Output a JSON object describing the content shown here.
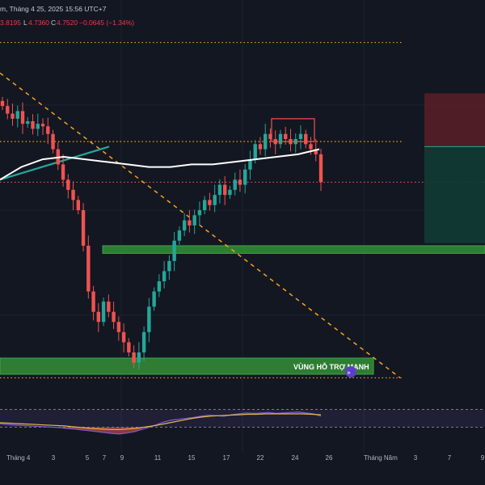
{
  "header": {
    "date_prefix": "m, Tháng 4 25, 2025 15:56 UTC+7",
    "ohlc": [
      "3.8195",
      "L4.7360",
      "C4.7520",
      "−0.0645 (−1.34%)"
    ]
  },
  "zone": {
    "label": "VÙNG HỖ TRỢ MẠNH"
  },
  "colors": {
    "background": "#131722",
    "bull": "#26a69a",
    "bear": "#ef5350",
    "dotted_level": "#f7a21b",
    "trendline": "#f7a21b",
    "support_zone": "#2e7d32",
    "ma_line": "#ffffff",
    "rsi_line": "#7e57c2",
    "rsi_signal": "#e5b84c"
  },
  "chart_data": [
    {
      "type": "candlestick",
      "x_tick_labels": [
        "Tháng 4",
        "3",
        "5",
        "7",
        "9",
        "11",
        "15",
        "17",
        "22",
        "24",
        "26",
        "Tháng Năm",
        "3",
        "7",
        "9"
      ],
      "ylim": [
        4.55,
        5.25
      ],
      "price_series": [
        5.105,
        5.09,
        5.08,
        5.095,
        5.07,
        5.075,
        5.06,
        5.07,
        5.065,
        5.05,
        5.02,
        4.99,
        4.96,
        4.94,
        4.92,
        4.9,
        4.83,
        4.74,
        4.7,
        4.68,
        4.72,
        4.7,
        4.68,
        4.66,
        4.64,
        4.62,
        4.6,
        4.62,
        4.66,
        4.71,
        4.74,
        4.76,
        4.78,
        4.8,
        4.84,
        4.86,
        4.88,
        4.87,
        4.89,
        4.9,
        4.92,
        4.91,
        4.93,
        4.95,
        4.93,
        4.94,
        4.96,
        4.95,
        4.98,
        5.0,
        5.03,
        5.02,
        5.05,
        5.04,
        5.03,
        5.05,
        5.04,
        5.03,
        5.04,
        5.05,
        5.03,
        5.02,
        5.01,
        4.955
      ],
      "moving_average": [
        4.96,
        4.985,
        5.0,
        5.005,
        5.0,
        4.995,
        4.99,
        4.985,
        4.985,
        4.99,
        4.99,
        4.995,
        5.0,
        5.005,
        5.01,
        5.02
      ],
      "dotted_levels": [
        5.23,
        5.035,
        4.955,
        4.57
      ],
      "support_zone": [
        4.815,
        4.83
      ],
      "strong_support_zone": [
        4.535,
        4.555
      ],
      "trendline": {
        "from": 5.17,
        "to": 4.57
      },
      "rising_line": {
        "from": 4.96,
        "to": 5.025
      },
      "range_box": [
        5.035,
        5.08
      ],
      "risk_reward_box": {
        "stop": 5.13,
        "entry": 5.025,
        "target": 4.835
      }
    },
    {
      "type": "line",
      "title": "",
      "rsi_levels": [
        70,
        30
      ],
      "rsi": [
        38,
        36,
        35,
        34,
        33,
        32,
        31,
        30,
        29,
        27,
        26,
        24,
        22,
        20,
        18,
        16,
        15,
        17,
        20,
        25,
        30,
        36,
        42,
        46,
        48,
        50,
        52,
        55,
        57,
        56,
        55,
        58,
        60,
        62,
        61,
        62,
        63,
        61,
        62,
        63,
        64,
        62,
        60,
        55
      ],
      "signal": [
        40,
        39,
        38,
        37,
        36,
        35,
        34,
        33,
        31,
        29,
        27,
        26,
        25,
        25,
        26,
        28,
        31,
        34,
        38,
        42,
        46,
        50,
        53,
        55,
        56,
        57,
        58,
        59,
        59,
        60,
        60,
        60,
        60,
        60,
        59,
        58
      ]
    }
  ]
}
